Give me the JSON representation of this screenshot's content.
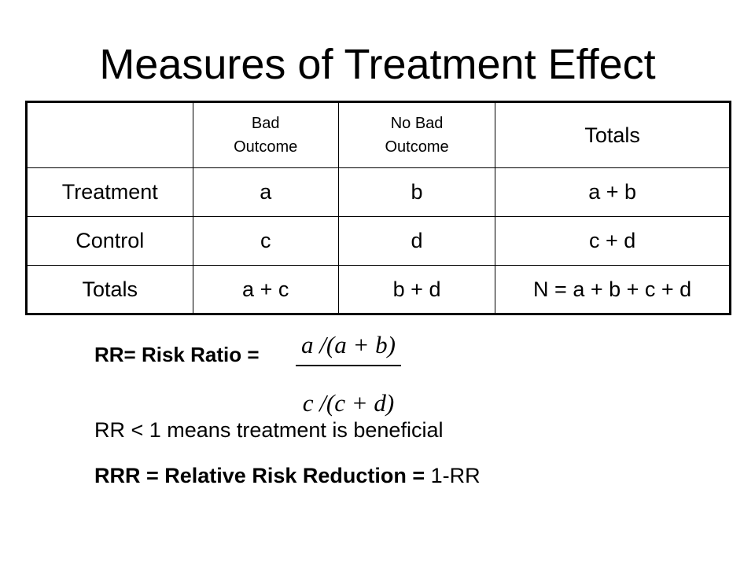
{
  "slide": {
    "title": "Measures of Treatment Effect"
  },
  "table": {
    "headers": [
      "",
      "Bad\nOutcome",
      "No Bad\nOutcome",
      "Totals"
    ],
    "header_line1": [
      "",
      "Bad",
      "No Bad",
      "Totals"
    ],
    "header_line2": [
      "",
      "Outcome",
      "Outcome",
      ""
    ],
    "rows": [
      [
        "Treatment",
        "a",
        "b",
        "a + b"
      ],
      [
        "Control",
        "c",
        "d",
        "c + d"
      ],
      [
        "Totals",
        "a + c",
        "b + d",
        "N = a + b + c + d"
      ]
    ]
  },
  "formula": {
    "label": "RR= Risk Ratio =",
    "numerator": "a /(a + b)",
    "denominator": "c /(c + d)"
  },
  "note": "RR < 1 means treatment is beneficial",
  "rrr": {
    "bold_part": "RRR = Relative Risk Reduction =",
    "plain_part": " 1-RR"
  }
}
